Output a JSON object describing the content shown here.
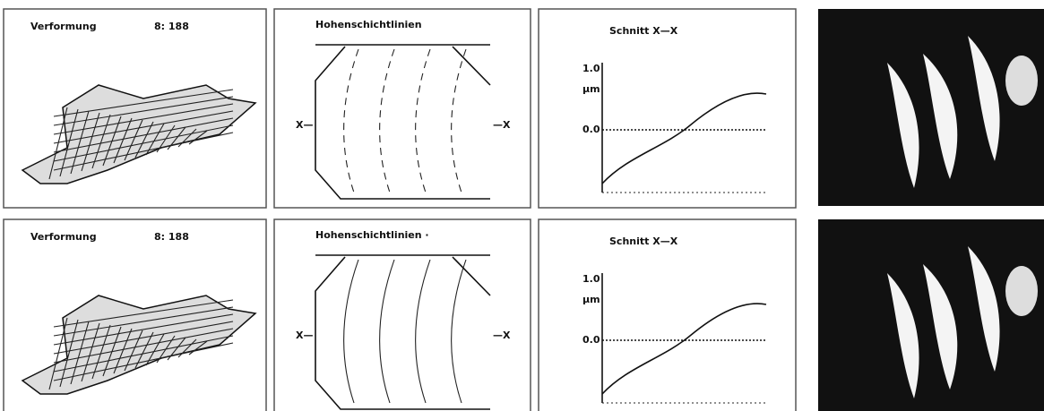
{
  "rows": [
    {
      "deformation": {
        "title": "Verformung",
        "label": "8:  188"
      },
      "contours": {
        "title": "Hohenschichtlinien",
        "left": "X—",
        "right": "—X"
      },
      "section": {
        "title": "Schnitt  X—X",
        "ytick_top": "1.0",
        "unit": "µm",
        "ytick_zero": "0.0"
      }
    },
    {
      "deformation": {
        "title": "Verformung",
        "label": "8:  188"
      },
      "contours": {
        "title": "Hohenschichtlinien ·",
        "left": "X—",
        "right": "—X"
      },
      "section": {
        "title": "Schnitt  X—X",
        "ytick_top": "1.0",
        "unit": "µm",
        "ytick_zero": "0.0"
      }
    }
  ]
}
